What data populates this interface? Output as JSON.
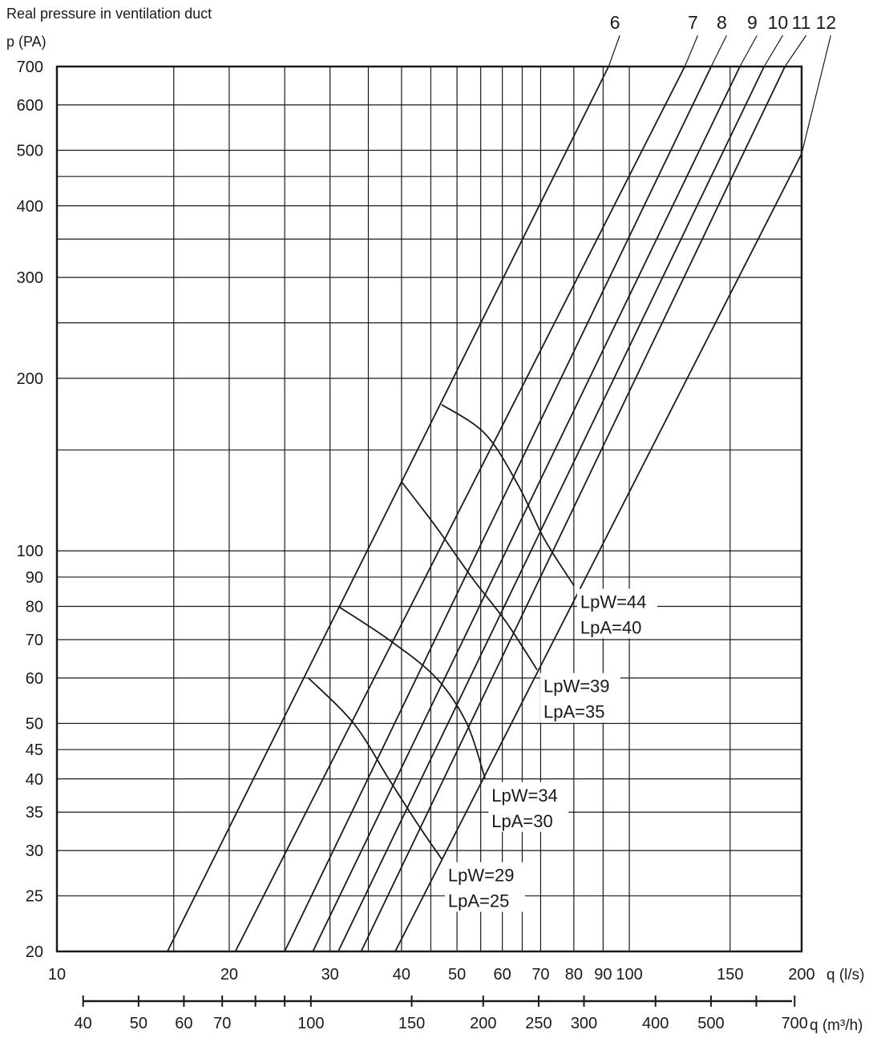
{
  "chart_data": {
    "type": "line",
    "title": "Real pressure in ventilation duct",
    "ylabel": "p (PA)",
    "xlabel": "q (l/s)",
    "xlabel_secondary": "q (m³/h)",
    "x_scale": "log",
    "y_scale": "log",
    "xlim": [
      10,
      200
    ],
    "ylim": [
      20,
      700
    ],
    "grid": true,
    "x_ticks": [
      {
        "value": 10,
        "label": "10"
      },
      {
        "value": 20,
        "label": "20"
      },
      {
        "value": 30,
        "label": "30"
      },
      {
        "value": 40,
        "label": "40"
      },
      {
        "value": 50,
        "label": "50"
      },
      {
        "value": 60,
        "label": "60"
      },
      {
        "value": 70,
        "label": "70"
      },
      {
        "value": 80,
        "label": "80"
      },
      {
        "value": 90,
        "label": "90"
      },
      {
        "value": 100,
        "label": "100"
      },
      {
        "value": 150,
        "label": "150"
      },
      {
        "value": 200,
        "label": "200"
      }
    ],
    "x_extra_gridlines": [
      16,
      25,
      35,
      45,
      55,
      65
    ],
    "y_ticks": [
      {
        "value": 20,
        "label": "20"
      },
      {
        "value": 25,
        "label": "25"
      },
      {
        "value": 30,
        "label": "30"
      },
      {
        "value": 35,
        "label": "35"
      },
      {
        "value": 40,
        "label": "40"
      },
      {
        "value": 45,
        "label": "45"
      },
      {
        "value": 50,
        "label": "50"
      },
      {
        "value": 60,
        "label": "60"
      },
      {
        "value": 70,
        "label": "70"
      },
      {
        "value": 80,
        "label": "80"
      },
      {
        "value": 90,
        "label": "90"
      },
      {
        "value": 100,
        "label": "100"
      },
      {
        "value": 200,
        "label": "200"
      },
      {
        "value": 300,
        "label": "300"
      },
      {
        "value": 400,
        "label": "400"
      },
      {
        "value": 500,
        "label": "500"
      },
      {
        "value": 600,
        "label": "600"
      },
      {
        "value": 700,
        "label": "700"
      }
    ],
    "y_extra_gridlines": [
      150,
      250,
      350,
      450
    ],
    "secondary_axis_ticks": [
      {
        "value": 40,
        "label": "40"
      },
      {
        "value": 50,
        "label": "50"
      },
      {
        "value": 60,
        "label": "60"
      },
      {
        "value": 70,
        "label": "70"
      },
      {
        "value": 80,
        "label": ""
      },
      {
        "value": 90,
        "label": ""
      },
      {
        "value": 100,
        "label": "100"
      },
      {
        "value": 150,
        "label": "150"
      },
      {
        "value": 200,
        "label": "200"
      },
      {
        "value": 250,
        "label": "250"
      },
      {
        "value": 300,
        "label": "300"
      },
      {
        "value": 400,
        "label": "400"
      },
      {
        "value": 500,
        "label": "500"
      },
      {
        "value": 600,
        "label": ""
      },
      {
        "value": 700,
        "label": "700"
      }
    ],
    "series": [
      {
        "name": "6",
        "points": [
          [
            15.6,
            20
          ],
          [
            92,
            700
          ]
        ],
        "label_x": 95,
        "label_y": 835
      },
      {
        "name": "7",
        "points": [
          [
            20.5,
            20
          ],
          [
            125,
            700
          ]
        ],
        "label_x": 130,
        "label_y": 835
      },
      {
        "name": "8",
        "points": [
          [
            25,
            20
          ],
          [
            139,
            700
          ]
        ],
        "label_x": 146,
        "label_y": 835
      },
      {
        "name": "9",
        "points": [
          [
            28,
            20
          ],
          [
            156,
            700
          ]
        ],
        "label_x": 165,
        "label_y": 835
      },
      {
        "name": "10",
        "points": [
          [
            31,
            20
          ],
          [
            172,
            700
          ]
        ],
        "label_x": 183,
        "label_y": 835
      },
      {
        "name": "11",
        "points": [
          [
            34,
            20
          ],
          [
            187,
            700
          ]
        ],
        "label_x": 201,
        "label_y": 835
      },
      {
        "name": "12",
        "points": [
          [
            39,
            20
          ],
          [
            200,
            493
          ]
        ],
        "label_x": 222,
        "label_y": 835
      }
    ],
    "sound_curves": [
      {
        "label_w": "LpW=29",
        "label_a": "LpA=25",
        "points": [
          [
            27.5,
            60
          ],
          [
            33,
            50
          ],
          [
            38,
            40
          ],
          [
            43,
            33
          ],
          [
            47,
            29
          ]
        ]
      },
      {
        "label_w": "LpW=34",
        "label_a": "LpA=30",
        "points": [
          [
            31,
            80
          ],
          [
            38,
            70
          ],
          [
            46,
            60
          ],
          [
            52,
            50
          ],
          [
            56,
            40
          ]
        ]
      },
      {
        "label_w": "LpW=39",
        "label_a": "LpA=35",
        "points": [
          [
            40,
            132
          ],
          [
            46,
            110
          ],
          [
            53,
            90
          ],
          [
            61,
            75
          ],
          [
            69,
            62
          ]
        ]
      },
      {
        "label_w": "LpW=44",
        "label_a": "LpA=40",
        "points": [
          [
            47,
            180
          ],
          [
            56,
            160
          ],
          [
            64,
            130
          ],
          [
            71,
            105
          ],
          [
            80,
            87
          ]
        ]
      }
    ]
  }
}
